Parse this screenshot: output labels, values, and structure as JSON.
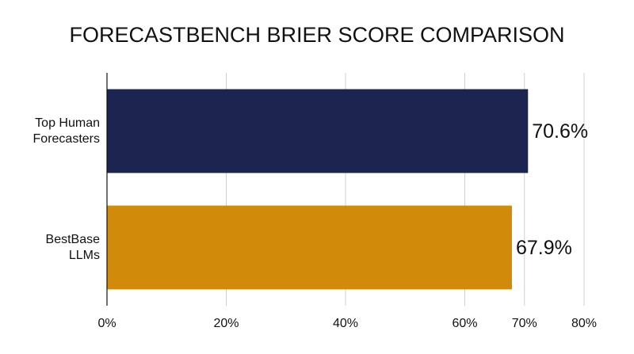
{
  "chart_data": {
    "type": "hbar",
    "title": "FORECASTBENCH BRIER SCORE COMPARISON",
    "categories": [
      "Top Human Forecasters",
      "BestBase LLMs"
    ],
    "values": [
      70.6,
      67.9
    ],
    "value_labels": [
      "70.6%",
      "67.9%"
    ],
    "colors": [
      "#1b2550",
      "#d18a0a"
    ],
    "xlim": [
      0,
      80
    ],
    "xticks": [
      {
        "value": 0,
        "label": "0%"
      },
      {
        "value": 20,
        "label": "20%"
      },
      {
        "value": 40,
        "label": "40%"
      },
      {
        "value": 60,
        "label": "60%"
      },
      {
        "value": 70,
        "label": "70%"
      },
      {
        "value": 80,
        "label": "80%"
      }
    ],
    "grid": true
  }
}
